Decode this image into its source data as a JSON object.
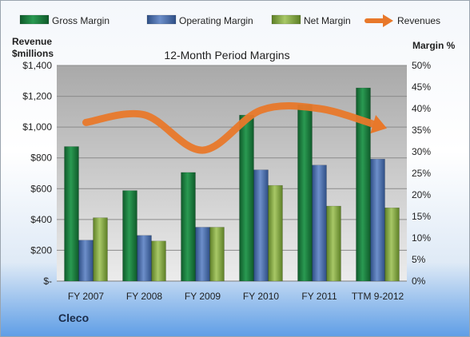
{
  "company": "Cleco",
  "chart_data": {
    "type": "bar",
    "title": "12-Month Period Margins",
    "y_left_label": [
      "Revenue",
      "$millions"
    ],
    "y_right_label": "Margin %",
    "categories": [
      "FY 2007",
      "FY 2008",
      "FY 2009",
      "FY 2010",
      "FY 2011",
      "TTM 9-2012"
    ],
    "y_left_ticks": [
      "$-",
      "$200",
      "$400",
      "$600",
      "$800",
      "$1,000",
      "$1,200",
      "$1,400"
    ],
    "y_right_ticks": [
      "0%",
      "5%",
      "10%",
      "15%",
      "20%",
      "25%",
      "30%",
      "35%",
      "40%",
      "45%",
      "50%"
    ],
    "ylim_left": [
      0,
      1400
    ],
    "ylim_right": [
      0,
      50
    ],
    "grid": true,
    "legend_position": "top",
    "series": [
      {
        "name": "Gross Margin",
        "color": "#1e7a3e",
        "axis": "right",
        "values": [
          31.2,
          21.0,
          25.2,
          38.5,
          40.9,
          44.8
        ]
      },
      {
        "name": "Operating Margin",
        "color": "#4a6fae",
        "axis": "right",
        "values": [
          9.5,
          10.6,
          12.5,
          25.8,
          26.9,
          28.3
        ]
      },
      {
        "name": "Net Margin",
        "color": "#8db04a",
        "axis": "right",
        "values": [
          14.7,
          9.3,
          12.5,
          22.2,
          17.4,
          17.0
        ]
      },
      {
        "name": "Revenues",
        "color": "#e8782a",
        "axis": "left",
        "type": "line",
        "values": [
          1030,
          1080,
          850,
          1110,
          1120,
          1010
        ]
      }
    ]
  }
}
